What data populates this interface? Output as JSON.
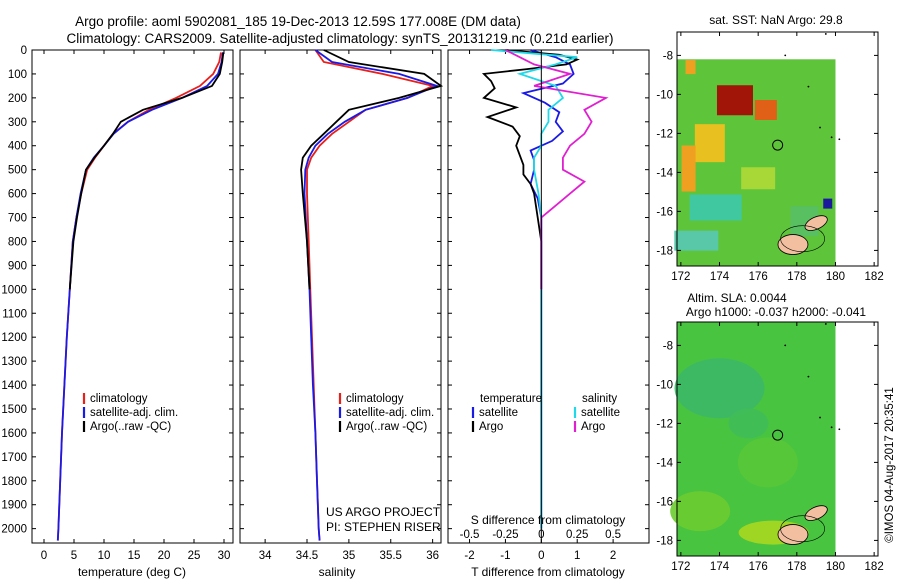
{
  "header": {
    "line1": "Argo profile: aoml 5902081_185 19-Dec-2013 12.59S 177.008E (DM data)",
    "line2": "Climatology: CARS2009. Satellite-adjusted climatology: synTS_20131219.nc (0.21d earlier)"
  },
  "colors": {
    "clim": "#e8201a",
    "sat": "#1a1ae6",
    "argo": "#000000",
    "sal_sat": "#20d8e8",
    "sal_argo": "#e020d0"
  },
  "depth_axis": {
    "range": [
      0,
      2060
    ],
    "ticks": [
      0,
      100,
      200,
      300,
      400,
      500,
      600,
      700,
      800,
      900,
      1000,
      1100,
      1200,
      1300,
      1400,
      1500,
      1600,
      1700,
      1800,
      1900,
      2000
    ]
  },
  "chart_data": [
    {
      "type": "line",
      "id": "temperature",
      "xlabel": "temperature (deg C)",
      "xlim": [
        -2,
        31.5
      ],
      "xticks": [
        0,
        5,
        10,
        15,
        20,
        25,
        30
      ],
      "ylabel": "depth",
      "ylim": [
        2060,
        0
      ],
      "legend": [
        "climatology",
        "satellite-adj. clim.",
        "Argo(..raw -QC)"
      ],
      "series": [
        {
          "name": "climatology",
          "color": "#e8201a",
          "depth": [
            10,
            50,
            100,
            150,
            200,
            250,
            300,
            350,
            400,
            450,
            500,
            600,
            700,
            800,
            1000,
            1200,
            1400,
            1600,
            1800,
            2000,
            2050
          ],
          "values": [
            29.5,
            29.2,
            28.2,
            26.0,
            22.0,
            17.5,
            14.0,
            11.5,
            10.0,
            8.5,
            7.2,
            6.2,
            5.4,
            4.8,
            4.3,
            3.8,
            3.4,
            3.0,
            2.7,
            2.4,
            2.3
          ]
        },
        {
          "name": "satellite-adj. clim.",
          "color": "#1a1ae6",
          "depth": [
            10,
            50,
            100,
            150,
            200,
            250,
            300,
            350,
            400,
            450,
            500,
            600,
            700,
            800,
            1000,
            1200,
            1400,
            1600,
            1800,
            2000,
            2050
          ],
          "values": [
            29.8,
            29.6,
            29.0,
            27.2,
            23.0,
            18.0,
            14.0,
            11.6,
            10.0,
            8.3,
            7.0,
            6.1,
            5.4,
            4.8,
            4.3,
            3.8,
            3.4,
            3.0,
            2.7,
            2.4,
            2.3
          ]
        },
        {
          "name": "Argo(..raw -QC)",
          "color": "#000000",
          "depth": [
            10,
            50,
            100,
            150,
            200,
            250,
            300,
            350,
            400,
            450,
            500,
            600,
            700,
            800,
            1000
          ],
          "values": [
            29.9,
            29.7,
            29.3,
            28.0,
            23.0,
            16.5,
            12.8,
            11.5,
            10.0,
            8.4,
            7.0,
            6.2,
            5.5,
            4.9,
            4.3
          ]
        }
      ]
    },
    {
      "type": "line",
      "id": "salinity",
      "xlabel": "salinity",
      "xlim": [
        33.7,
        36.1
      ],
      "xticks": [
        34,
        34.5,
        35,
        35.5,
        36
      ],
      "ylabel": "depth",
      "ylim": [
        2060,
        0
      ],
      "legend": [
        "climatology",
        "satellite-adj. clim.",
        "Argo(..raw -QC)"
      ],
      "annotation": [
        "US ARGO PROJECT",
        "PI: STEPHEN RISER"
      ],
      "series": [
        {
          "name": "climatology",
          "color": "#e8201a",
          "depth": [
            0,
            50,
            100,
            150,
            200,
            250,
            300,
            350,
            400,
            450,
            500,
            600,
            800,
            1000,
            1200,
            1400,
            1600,
            1800,
            2000,
            2050
          ],
          "values": [
            34.6,
            34.7,
            35.4,
            36.0,
            35.7,
            35.2,
            35.0,
            34.8,
            34.65,
            34.55,
            34.5,
            34.5,
            34.52,
            34.54,
            34.56,
            34.58,
            34.6,
            34.62,
            34.64,
            34.65
          ]
        },
        {
          "name": "satellite-adj. clim.",
          "color": "#1a1ae6",
          "depth": [
            0,
            50,
            100,
            150,
            200,
            250,
            300,
            350,
            400,
            450,
            500,
            600,
            800,
            1000,
            1200,
            1400,
            1600,
            1800,
            2000,
            2050
          ],
          "values": [
            34.6,
            34.8,
            35.6,
            36.05,
            35.7,
            35.2,
            34.95,
            34.75,
            34.6,
            34.52,
            34.48,
            34.47,
            34.5,
            34.53,
            34.55,
            34.57,
            34.6,
            34.62,
            34.64,
            34.65
          ]
        },
        {
          "name": "Argo(..raw -QC)",
          "color": "#000000",
          "depth": [
            0,
            50,
            100,
            150,
            200,
            250,
            300,
            350,
            400,
            450,
            500,
            600,
            800,
            1000
          ],
          "values": [
            34.7,
            35.0,
            35.9,
            36.1,
            35.6,
            35.0,
            34.85,
            34.7,
            34.55,
            34.45,
            34.43,
            34.45,
            34.5,
            34.53
          ]
        }
      ]
    },
    {
      "type": "line",
      "id": "differences",
      "xlabel": "T difference from climatology",
      "xlim": [
        -2.6,
        3.0
      ],
      "xticks": [
        -2,
        -1,
        0,
        1,
        2
      ],
      "xlabel2": "S difference from climatology",
      "xticks2": [
        "-0.5",
        "-0.25",
        "0",
        "0.25",
        "0.5"
      ],
      "ylabel": "depth",
      "ylim": [
        2060,
        0
      ],
      "legend_temperature": [
        "temperature",
        "satellite",
        "Argo"
      ],
      "legend_salinity": [
        "salinity",
        "satellite",
        "Argo"
      ],
      "series": [
        {
          "name": "T satellite",
          "color": "#1a1ae6",
          "depth": [
            0,
            30,
            60,
            100,
            140,
            180,
            220,
            260,
            300,
            340,
            380,
            420,
            460,
            500,
            560,
            620,
            700,
            800,
            1000,
            1400,
            2000
          ],
          "values": [
            -0.3,
            0.4,
            0.8,
            0.9,
            0.6,
            -0.5,
            0.1,
            0.5,
            0.4,
            0.6,
            0.3,
            -0.3,
            -0.2,
            -0.2,
            -0.3,
            -0.1,
            0.0,
            0.0,
            0.0,
            0.0,
            0.0
          ]
        },
        {
          "name": "T Argo",
          "color": "#000000",
          "depth": [
            0,
            20,
            40,
            60,
            80,
            100,
            130,
            160,
            200,
            240,
            280,
            320,
            360,
            400,
            440,
            480,
            520,
            560,
            600,
            700,
            800,
            1000
          ],
          "values": [
            -1.0,
            0.5,
            1.0,
            0.7,
            -0.4,
            -1.6,
            -1.4,
            -1.3,
            -1.6,
            -0.7,
            -1.5,
            -0.8,
            -0.6,
            -0.7,
            -0.6,
            -0.5,
            -0.5,
            -0.3,
            -0.2,
            -0.1,
            0.0,
            0.0
          ]
        },
        {
          "name": "S satellite",
          "color": "#20d8e8",
          "depth": [
            0,
            30,
            60,
            100,
            150,
            200,
            250,
            300,
            350,
            400,
            450,
            500,
            600,
            700,
            800,
            1000,
            1400,
            2000
          ],
          "values": [
            -0.35,
            0.25,
            0.1,
            -0.15,
            0.1,
            0.15,
            0.05,
            0.05,
            0.0,
            0.0,
            -0.05,
            -0.05,
            -0.02,
            0.0,
            0.0,
            0.0,
            0.0,
            0.0
          ]
        },
        {
          "name": "S Argo",
          "color": "#e020d0",
          "depth": [
            0,
            30,
            60,
            100,
            150,
            200,
            250,
            300,
            350,
            400,
            450,
            500,
            550,
            600,
            650,
            700,
            800,
            1000
          ],
          "values": [
            -0.25,
            -0.15,
            -0.05,
            0.2,
            -0.05,
            0.45,
            0.3,
            0.35,
            0.3,
            0.2,
            0.15,
            0.15,
            0.3,
            0.2,
            0.1,
            0.0,
            0.0,
            0.0
          ]
        }
      ]
    }
  ],
  "maps": {
    "top_title": "sat. SST: NaN Argo: 29.8",
    "bottom_title1": "Altim. SLA: 0.0044",
    "bottom_title2": "Argo h1000: -0.037 h2000: -0.041",
    "lat_ticks": [
      "-8",
      "-10",
      "-12",
      "-14",
      "-16",
      "-18"
    ],
    "lon_ticks": [
      "172",
      "174",
      "176",
      "178",
      "180",
      "182"
    ],
    "float_position": {
      "lat": -12.59,
      "lon": 177.008
    }
  },
  "credit": "©IMOS 04-Aug-2017 20:35:41"
}
